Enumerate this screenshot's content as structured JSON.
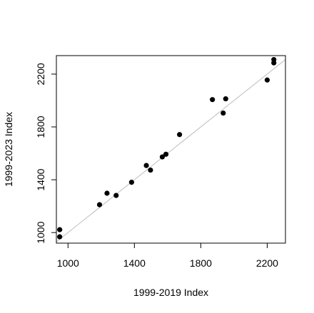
{
  "chart_data": {
    "type": "scatter",
    "title": "",
    "xlabel": "1999-2019 Index",
    "ylabel": "1999-2023 Index",
    "xlim": [
      930,
      2310
    ],
    "ylim": [
      920,
      2340
    ],
    "xticks": [
      1000,
      1400,
      1800,
      2200
    ],
    "yticks": [
      1000,
      1400,
      1800,
      2200
    ],
    "grid": false,
    "legend": "none",
    "point_color": "#000000",
    "reference_line": {
      "type": "identity",
      "slope": 1,
      "intercept": 0,
      "color": "#bebebe"
    },
    "points": [
      {
        "x": 950,
        "y": 1022
      },
      {
        "x": 950,
        "y": 968
      },
      {
        "x": 1190,
        "y": 1211
      },
      {
        "x": 1235,
        "y": 1298
      },
      {
        "x": 1290,
        "y": 1281
      },
      {
        "x": 1383,
        "y": 1381
      },
      {
        "x": 1472,
        "y": 1508
      },
      {
        "x": 1497,
        "y": 1473
      },
      {
        "x": 1568,
        "y": 1573
      },
      {
        "x": 1590,
        "y": 1593
      },
      {
        "x": 1672,
        "y": 1742
      },
      {
        "x": 1870,
        "y": 2007
      },
      {
        "x": 1935,
        "y": 1905
      },
      {
        "x": 1950,
        "y": 2013
      },
      {
        "x": 2200,
        "y": 2155
      },
      {
        "x": 2240,
        "y": 2285
      },
      {
        "x": 2240,
        "y": 2310
      }
    ]
  }
}
